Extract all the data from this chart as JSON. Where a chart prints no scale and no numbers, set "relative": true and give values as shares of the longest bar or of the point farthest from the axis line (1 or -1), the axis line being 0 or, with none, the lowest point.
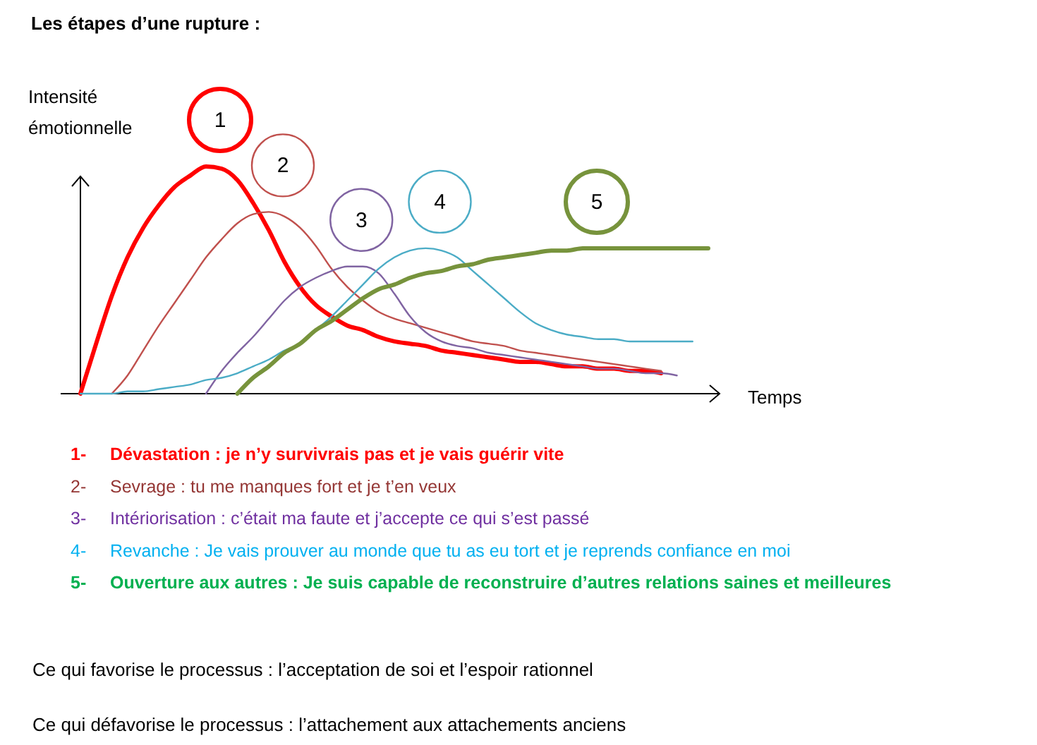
{
  "chart_data": {
    "type": "line",
    "title": "Les étapes d’une rupture :",
    "xlabel": "Temps",
    "ylabel": "Intensité émotionnelle",
    "relative": true,
    "categories": [
      null,
      null,
      null,
      null,
      null,
      null,
      null,
      null,
      null,
      null,
      null,
      null,
      null,
      null,
      null,
      null,
      null,
      null,
      null,
      null,
      null,
      null,
      null,
      null,
      null,
      null,
      null,
      null,
      null,
      null,
      null,
      null,
      null,
      null,
      null,
      null,
      null,
      null,
      null,
      null,
      null
    ],
    "series": [
      {
        "name": "1",
        "color": "#ff0000",
        "values": [
          0,
          0.22,
          0.43,
          0.6,
          0.73,
          0.83,
          0.91,
          0.96,
          1,
          0.99,
          0.94,
          0.84,
          0.72,
          0.58,
          0.47,
          0.39,
          0.34,
          0.3,
          0.28,
          0.25,
          0.23,
          0.22,
          0.21,
          0.19,
          0.18,
          0.17,
          0.16,
          0.15,
          0.14,
          0.14,
          0.13,
          0.12,
          0.12,
          0.11,
          0.11,
          0.1,
          0.1,
          0.09,
          null,
          null,
          null
        ]
      },
      {
        "name": "2",
        "color": "#c0504d",
        "values": [
          null,
          null,
          0,
          0.08,
          0.19,
          0.3,
          0.4,
          0.5,
          0.6,
          0.68,
          0.75,
          0.79,
          0.8,
          0.78,
          0.73,
          0.65,
          0.55,
          0.47,
          0.41,
          0.36,
          0.33,
          0.31,
          0.29,
          0.27,
          0.25,
          0.23,
          0.22,
          0.21,
          0.19,
          0.18,
          0.17,
          0.16,
          0.15,
          0.14,
          0.13,
          0.12,
          0.11,
          0.1,
          null,
          null,
          null
        ]
      },
      {
        "name": "3",
        "color": "#8064a2",
        "values": [
          null,
          null,
          null,
          null,
          null,
          null,
          null,
          null,
          0,
          0.1,
          0.18,
          0.25,
          0.33,
          0.41,
          0.47,
          0.51,
          0.54,
          0.56,
          0.56,
          0.53,
          0.44,
          0.34,
          0.27,
          0.23,
          0.21,
          0.2,
          0.18,
          0.17,
          0.16,
          0.15,
          0.14,
          0.13,
          0.12,
          0.11,
          0.11,
          0.1,
          0.09,
          0.09,
          0.08,
          null,
          null
        ]
      },
      {
        "name": "4",
        "color": "#4bacc6",
        "values": [
          0,
          0,
          0,
          0.01,
          0.01,
          0.02,
          0.03,
          0.04,
          0.06,
          0.07,
          0.09,
          0.12,
          0.15,
          0.19,
          0.22,
          0.28,
          0.34,
          0.41,
          0.48,
          0.55,
          0.6,
          0.63,
          0.64,
          0.63,
          0.6,
          0.54,
          0.48,
          0.42,
          0.36,
          0.31,
          0.28,
          0.26,
          0.25,
          0.24,
          0.24,
          0.23,
          0.23,
          0.23,
          0.23,
          0.23,
          null
        ]
      },
      {
        "name": "5",
        "color": "#77933c",
        "values": [
          null,
          null,
          null,
          null,
          null,
          null,
          null,
          null,
          null,
          null,
          0,
          0.07,
          0.12,
          0.18,
          0.22,
          0.28,
          0.32,
          0.37,
          0.42,
          0.46,
          0.48,
          0.51,
          0.53,
          0.54,
          0.56,
          0.57,
          0.59,
          0.6,
          0.61,
          0.62,
          0.63,
          0.63,
          0.64,
          0.64,
          0.64,
          0.64,
          0.64,
          0.64,
          0.64,
          0.64,
          0.64
        ]
      }
    ],
    "annotations": [
      "1- Dévastation : je n’y survivrais pas et je vais guérir vite",
      "2- Sevrage : tu me manques fort et je t’en veux",
      "3- Intériorisation : c’était ma faute et j’accepte ce qui s’est passé",
      "4- Revanche : Je vais prouver au monde que tu as eu tort et je reprends confiance en moi",
      "5- Ouverture aux autres : Je suis capable de reconstruire d’autres relations saines et meilleures",
      "Ce qui favorise le processus : l’acceptation de soi et l’espoir rationnel",
      "Ce qui défavorise le processus : l’attachement aux attachements anciens"
    ]
  }
}
